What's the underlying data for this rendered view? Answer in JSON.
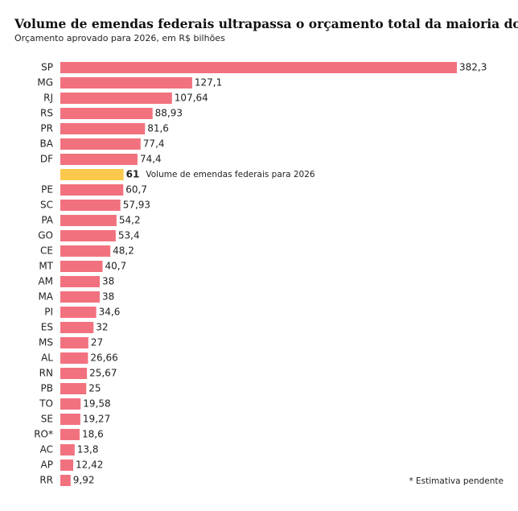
{
  "chart_data": {
    "type": "hbar",
    "title": "Volume de emendas federais ultrapassa o orçamento total da maioria dos estados",
    "subtitle": "Orçamento aprovado para 2026, em R$ bilhões",
    "categories": [
      "SP",
      "MG",
      "RJ",
      "RS",
      "PR",
      "BA",
      "DF",
      null,
      "PE",
      "SC",
      "PA",
      "GO",
      "CE",
      "MT",
      "AM",
      "MA",
      "PI",
      "ES",
      "MS",
      "AL",
      "RN",
      "PB",
      "TO",
      "SE",
      "RO*",
      "AC",
      "AP",
      "RR"
    ],
    "values": [
      382.3,
      127.1,
      107.64,
      88.93,
      81.6,
      77.4,
      74.4,
      61,
      60.7,
      57.93,
      54.2,
      53.4,
      48.2,
      40.7,
      38,
      38,
      34.6,
      32,
      27,
      26.66,
      25.67,
      25,
      19.58,
      19.27,
      18.6,
      13.8,
      12.42,
      9.92
    ],
    "value_labels": [
      "382,3",
      "127,1",
      "107,64",
      "88,93",
      "81,6",
      "77,4",
      "74,4",
      "61",
      "60,7",
      "57,93",
      "54,2",
      "53,4",
      "48,2",
      "40,7",
      "38",
      "38",
      "34,6",
      "32",
      "27",
      "26,66",
      "25,67",
      "25",
      "19,58",
      "19,27",
      "18,6",
      "13,8",
      "12,42",
      "9,92"
    ],
    "colors": [
      "#f2717f",
      "#f2717f",
      "#f2717f",
      "#f2717f",
      "#f2717f",
      "#f2717f",
      "#f2717f",
      "#fcc94c",
      "#f2717f",
      "#f2717f",
      "#f2717f",
      "#f2717f",
      "#f2717f",
      "#f2717f",
      "#f2717f",
      "#f2717f",
      "#f2717f",
      "#f2717f",
      "#f2717f",
      "#f2717f",
      "#f2717f",
      "#f2717f",
      "#f2717f",
      "#f2717f",
      "#f2717f",
      "#f2717f",
      "#f2717f",
      "#f2717f"
    ],
    "annotation": "Volume de emendas federais para 2026",
    "footnote": "* Estimativa pendente"
  }
}
